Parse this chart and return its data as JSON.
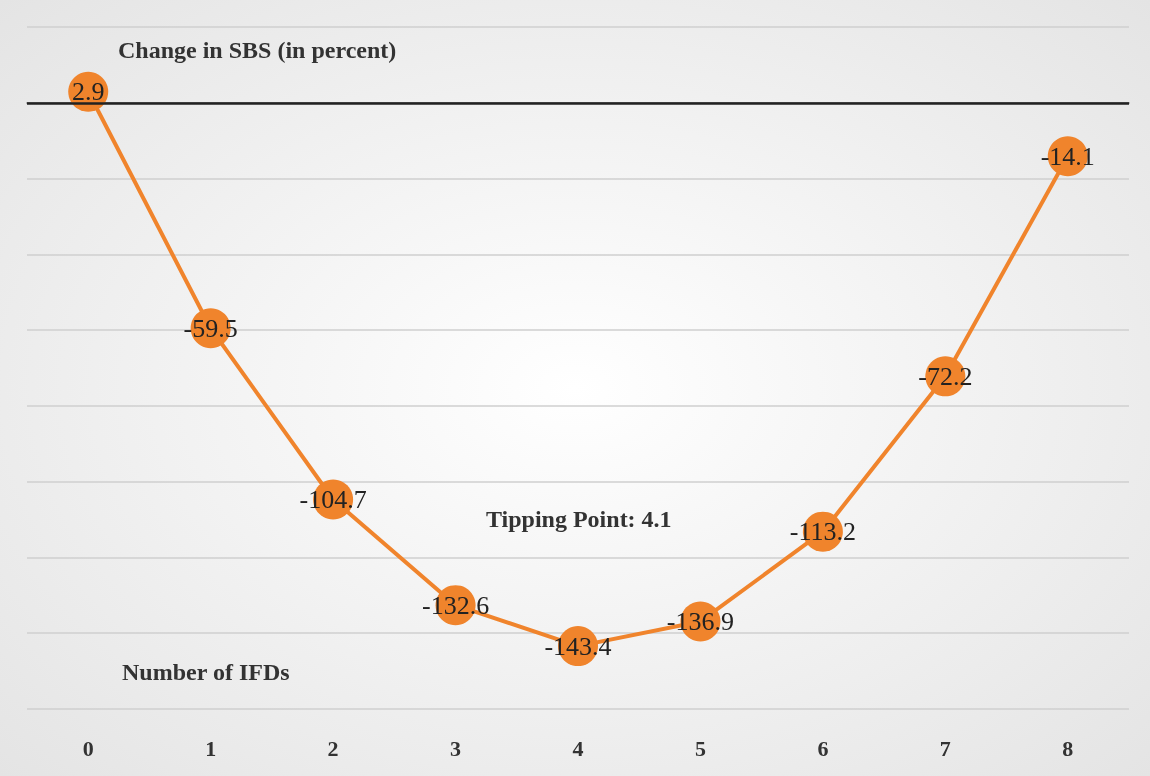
{
  "chart_data": {
    "type": "line",
    "ylabel": "Change in SBS (in percent)",
    "xlabel": "Number of IFDs",
    "annotations": [
      "Tipping Point: 4.1"
    ],
    "categories": [
      "0",
      "1",
      "2",
      "3",
      "4",
      "5",
      "6",
      "7",
      "8"
    ],
    "series": [
      {
        "color": "#f0842c",
        "values": [
          2.9,
          -59.5,
          -104.7,
          -132.6,
          -143.4,
          -136.9,
          -113.2,
          -72.2,
          -14.1
        ]
      }
    ],
    "ylim": [
      -160,
      20
    ],
    "yticks": [
      {
        "value": -160,
        "label": null
      },
      {
        "value": -140,
        "label": null
      },
      {
        "value": -120,
        "label": null
      },
      {
        "value": -100,
        "label": null
      },
      {
        "value": -80,
        "label": null
      },
      {
        "value": -60,
        "label": null
      },
      {
        "value": -40,
        "label": null
      },
      {
        "value": -20,
        "label": null
      },
      {
        "value": 0,
        "label": null
      },
      {
        "value": 20,
        "label": null
      }
    ],
    "ref_lines": [
      {
        "axis": "y",
        "value": 0,
        "color": "#222222"
      }
    ],
    "tick_labels": "x",
    "grid": "y",
    "marker": "circle",
    "line_style": "solid",
    "data_labels": true
  }
}
